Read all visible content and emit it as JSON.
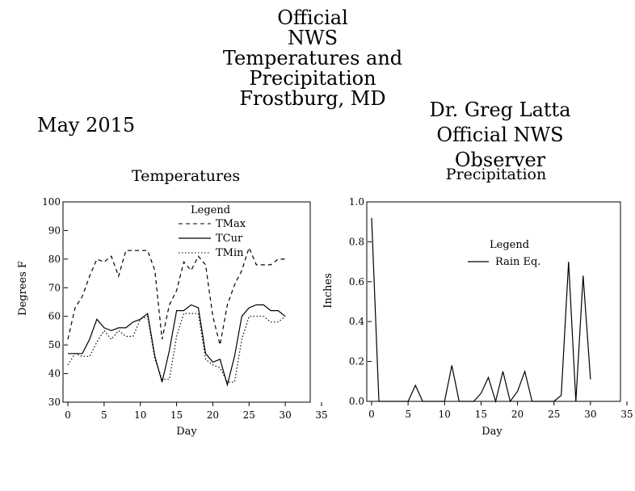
{
  "header": {
    "title_lines": [
      "Official",
      "NWS",
      "Temperatures and Precipitation",
      "Frostburg, MD"
    ],
    "month": "May 2015",
    "observer_lines": [
      "Dr. Greg Latta",
      "Official NWS Observer"
    ]
  },
  "chart_data": [
    {
      "type": "line",
      "title": "Temperatures",
      "xlabel": "Day",
      "ylabel": "Degrees F",
      "xlim": [
        0,
        35
      ],
      "ylim": [
        30,
        100
      ],
      "x_ticks": [
        0,
        5,
        10,
        15,
        20,
        25,
        30,
        35
      ],
      "y_ticks": [
        30,
        40,
        50,
        60,
        70,
        80,
        90,
        100
      ],
      "grid": false,
      "legend": {
        "title": "Legend",
        "placement": "top-center"
      },
      "series": [
        {
          "name": "TMax",
          "style": "dashed",
          "x": [
            0,
            1,
            2,
            3,
            4,
            5,
            6,
            7,
            8,
            9,
            10,
            11,
            12,
            13,
            14,
            15,
            16,
            17,
            18,
            19,
            20,
            21,
            22,
            23,
            24,
            25,
            26,
            27,
            28,
            29,
            30
          ],
          "values": [
            52,
            63,
            67,
            74,
            80,
            79,
            81,
            74,
            83,
            83,
            83,
            83,
            76,
            52,
            64,
            69,
            79,
            76,
            81,
            78,
            60,
            50,
            64,
            71,
            76,
            84,
            78,
            78,
            78,
            80,
            80
          ]
        },
        {
          "name": "TCur",
          "style": "solid",
          "x": [
            0,
            1,
            2,
            3,
            4,
            5,
            6,
            7,
            8,
            9,
            10,
            11,
            12,
            13,
            14,
            15,
            16,
            17,
            18,
            19,
            20,
            21,
            22,
            23,
            24,
            25,
            26,
            27,
            28,
            29,
            30
          ],
          "values": [
            47,
            47,
            47,
            52,
            59,
            56,
            55,
            56,
            56,
            58,
            59,
            61,
            46,
            37,
            48,
            62,
            62,
            64,
            63,
            47,
            44,
            45,
            36,
            46,
            60,
            63,
            64,
            64,
            62,
            62,
            60
          ]
        },
        {
          "name": "TMin",
          "style": "dotted",
          "x": [
            0,
            1,
            2,
            3,
            4,
            5,
            6,
            7,
            8,
            9,
            10,
            11,
            12,
            13,
            14,
            15,
            16,
            17,
            18,
            19,
            20,
            21,
            22,
            23,
            24,
            25,
            26,
            27,
            28,
            29,
            30
          ],
          "values": [
            43,
            47,
            46,
            46,
            51,
            55,
            52,
            55,
            53,
            53,
            59,
            60,
            45,
            38,
            38,
            53,
            61,
            61,
            61,
            45,
            43,
            42,
            37,
            37,
            52,
            60,
            60,
            60,
            58,
            58,
            60
          ]
        }
      ]
    },
    {
      "type": "line",
      "title": "Precipitation",
      "xlabel": "Day",
      "ylabel": "Inches",
      "xlim": [
        0,
        35
      ],
      "ylim": [
        0,
        1.0
      ],
      "x_ticks": [
        0,
        5,
        10,
        15,
        20,
        25,
        30,
        35
      ],
      "y_ticks": [
        "0.0",
        "0.2",
        "0.4",
        "0.6",
        "0.8",
        "1.0"
      ],
      "grid": false,
      "legend": {
        "title": "Legend",
        "placement": "top-right"
      },
      "series": [
        {
          "name": "Rain Eq.",
          "style": "solid",
          "x": [
            0,
            1,
            2,
            3,
            4,
            5,
            6,
            7,
            8,
            9,
            10,
            11,
            12,
            13,
            14,
            15,
            16,
            17,
            18,
            19,
            20,
            21,
            22,
            23,
            24,
            25,
            26,
            27,
            28,
            29,
            30
          ],
          "values": [
            0.92,
            0.0,
            0.0,
            0.0,
            0.0,
            0.0,
            0.08,
            0.0,
            0.0,
            0.0,
            0.0,
            0.18,
            0.0,
            0.0,
            0.0,
            0.04,
            0.12,
            0.0,
            0.15,
            0.0,
            0.05,
            0.15,
            0.0,
            0.0,
            0.0,
            0.0,
            0.03,
            0.7,
            0.0,
            0.63,
            0.11
          ]
        }
      ]
    }
  ]
}
